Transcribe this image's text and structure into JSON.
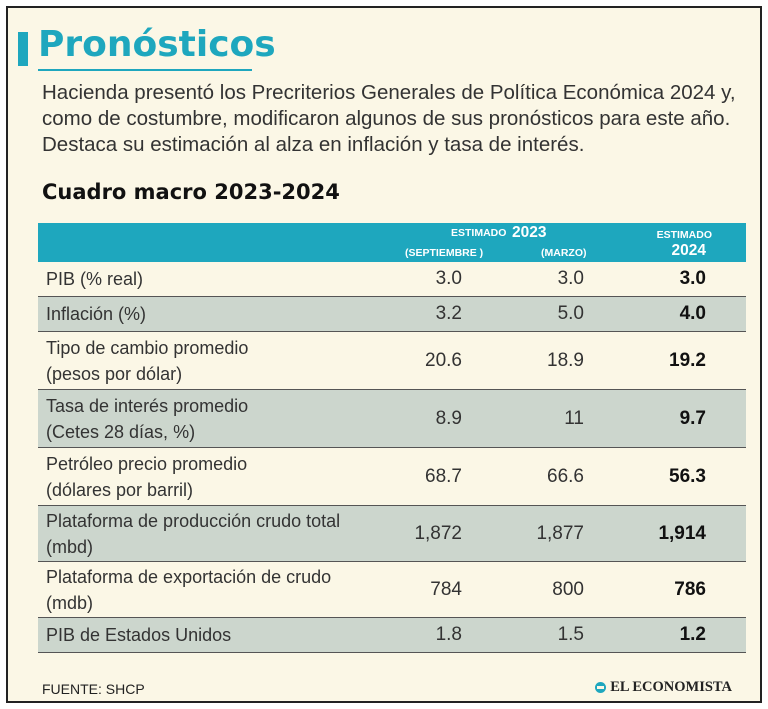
{
  "title": "Pronósticos",
  "intro_lines": [
    "Hacienda presentó los Precriterios Generales de Política Económica 2024 y,",
    "como de costumbre, modificaron algunos de sus pronósticos para este año.",
    "Destaca su estimación al alza en inflación y tasa de interés."
  ],
  "table_title": "Cuadro macro 2023-2024",
  "header": {
    "estimado_2023_label": "ESTIMADO",
    "year_2023": "2023",
    "col_sep": "(SEPTIEMBRE )",
    "col_mar": "(MARZO)",
    "estimado_2024_label": "ESTIMADO",
    "year_2024": "2024"
  },
  "rows": [
    {
      "label": [
        "PIB (% real)"
      ],
      "sep": "3.0",
      "mar": "3.0",
      "est2024": "3.0"
    },
    {
      "label": [
        "Inflación (%)"
      ],
      "sep": "3.2",
      "mar": "5.0",
      "est2024": "4.0"
    },
    {
      "label": [
        "Tipo de cambio promedio",
        "(pesos por dólar)"
      ],
      "sep": "20.6",
      "mar": "18.9",
      "est2024": "19.2"
    },
    {
      "label": [
        "Tasa de interés promedio",
        "(Cetes 28 días, %)"
      ],
      "sep": "8.9",
      "mar": "11",
      "est2024": "9.7"
    },
    {
      "label": [
        "Petróleo precio promedio",
        "(dólares por barril)"
      ],
      "sep": "68.7",
      "mar": "66.6",
      "est2024": "56.3"
    },
    {
      "label": [
        "Plataforma de producción crudo total",
        "(mbd)"
      ],
      "sep": "1,872",
      "mar": "1,877",
      "est2024": "1,914"
    },
    {
      "label": [
        "Plataforma de exportación de crudo",
        "(mdb)"
      ],
      "sep": "784",
      "mar": "800",
      "est2024": "786"
    },
    {
      "label": [
        "PIB de Estados Unidos"
      ],
      "sep": "1.8",
      "mar": "1.5",
      "est2024": "1.2"
    }
  ],
  "source": "FUENTE: SHCP",
  "brand": "EL ECONOMISTA",
  "colors": {
    "accent": "#1ea7be",
    "background": "#fbf7e6",
    "alt_row": "#ccd6cd"
  }
}
